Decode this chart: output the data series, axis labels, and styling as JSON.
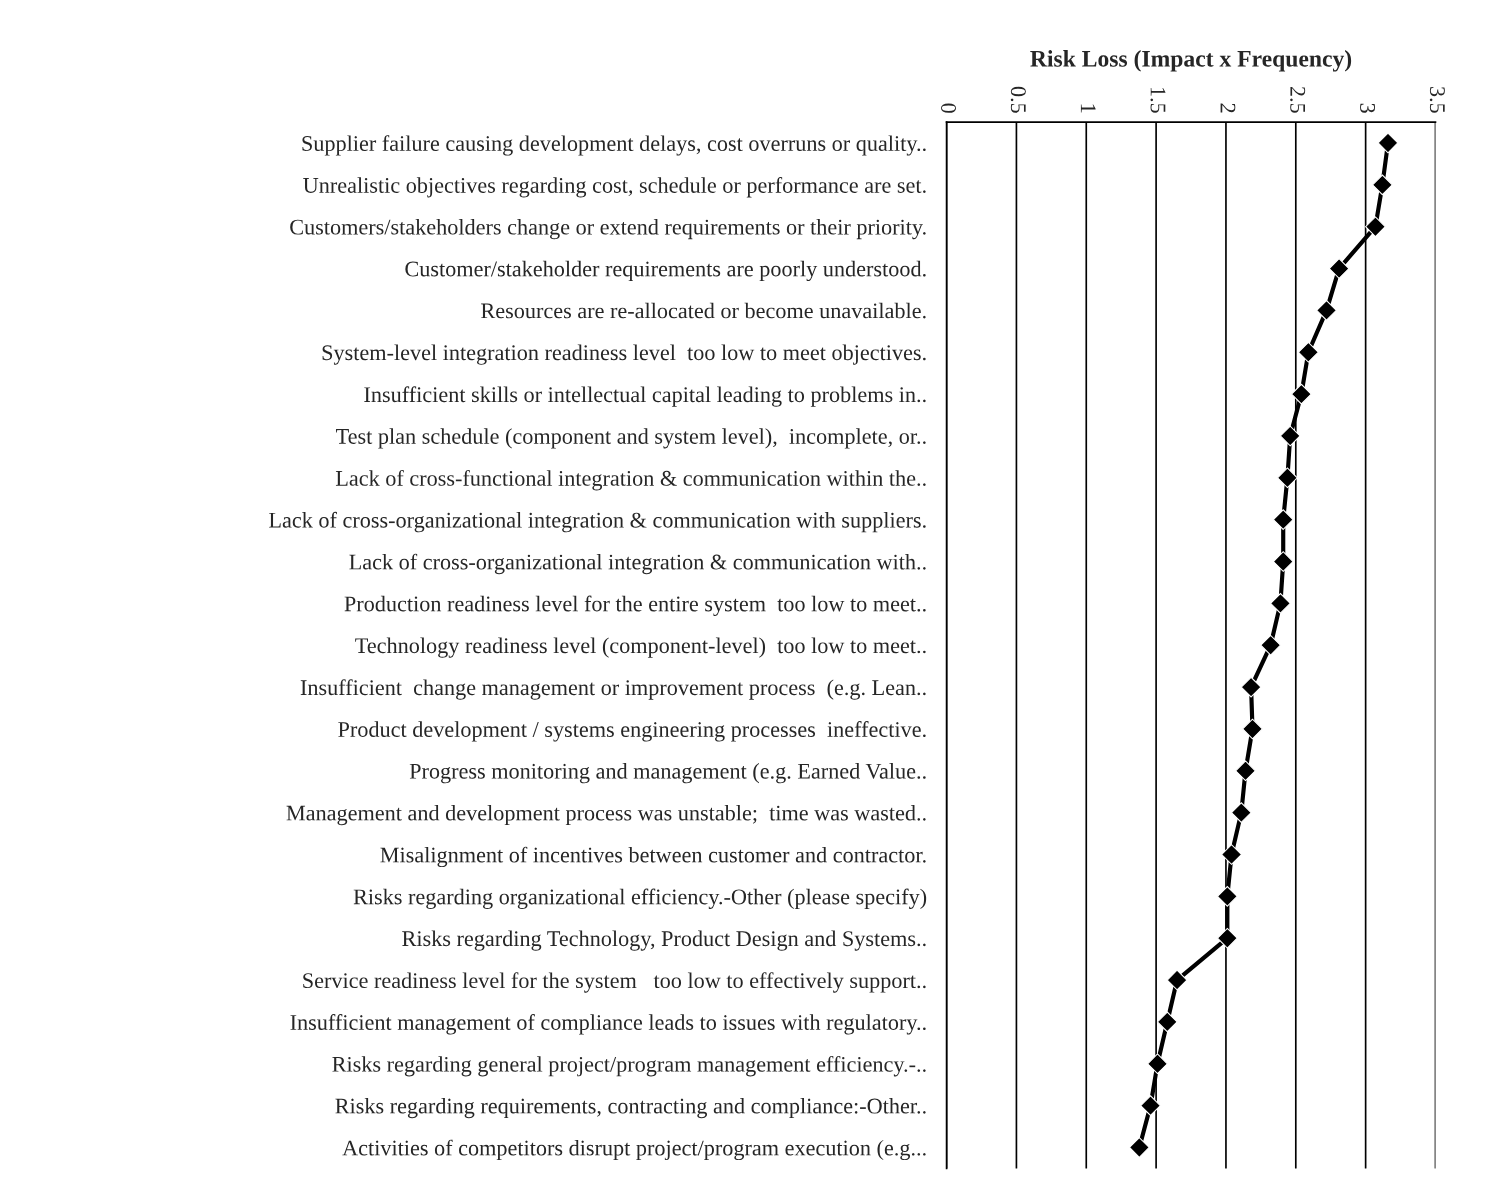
{
  "chart_data": {
    "type": "line",
    "orientation": "horizontal",
    "xlabel": "Risk Loss (Impact x Frequency)",
    "categories": [
      "Supplier failure causing development delays, cost overruns or quality..",
      "Unrealistic objectives regarding cost, schedule or performance are set.",
      "Customers/stakeholders change or extend requirements or their priority.",
      "Customer/stakeholder requirements are poorly understood.",
      "Resources are re-allocated or become unavailable.",
      "System-level integration readiness level  too low to meet objectives.",
      "Insufficient skills or intellectual capital leading to problems in..",
      "Test plan schedule (component and system level),  incomplete, or..",
      "Lack of cross-functional integration & communication within the..",
      "Lack of cross-organizational integration & communication with suppliers.",
      "Lack of cross-organizational integration & communication with..",
      "Production readiness level for the entire system  too low to meet..",
      "Technology readiness level (component-level)  too low to meet..",
      "Insufficient  change management or improvement process  (e.g. Lean..",
      "Product development / systems engineering processes  ineffective.",
      "Progress monitoring and management (e.g. Earned Value..",
      "Management and development process was unstable;  time was wasted..",
      "Misalignment of incentives between customer and contractor.",
      "Risks regarding organizational efficiency.-Other (please specify)",
      "Risks regarding Technology, Product Design and Systems..",
      "Service readiness level for the system   too low to effectively support..",
      "Insufficient management of compliance leads to issues with regulatory..",
      "Risks regarding general project/program management efficiency.-..",
      "Risks regarding requirements, contracting and compliance:-Other..",
      "Activities of competitors disrupt project/program execution (e.g..."
    ],
    "values": [
      3.16,
      3.12,
      3.07,
      2.81,
      2.72,
      2.59,
      2.54,
      2.46,
      2.44,
      2.41,
      2.41,
      2.39,
      2.32,
      2.18,
      2.19,
      2.14,
      2.11,
      2.04,
      2.01,
      2.01,
      1.65,
      1.58,
      1.51,
      1.46,
      1.38
    ],
    "color": "#000000",
    "marker": "diamond",
    "line_style": "solid",
    "grid": "x",
    "xlim": [
      0,
      3.5
    ],
    "xticks": [
      0,
      0.5,
      1,
      1.5,
      2,
      2.5,
      3,
      3.5
    ]
  }
}
